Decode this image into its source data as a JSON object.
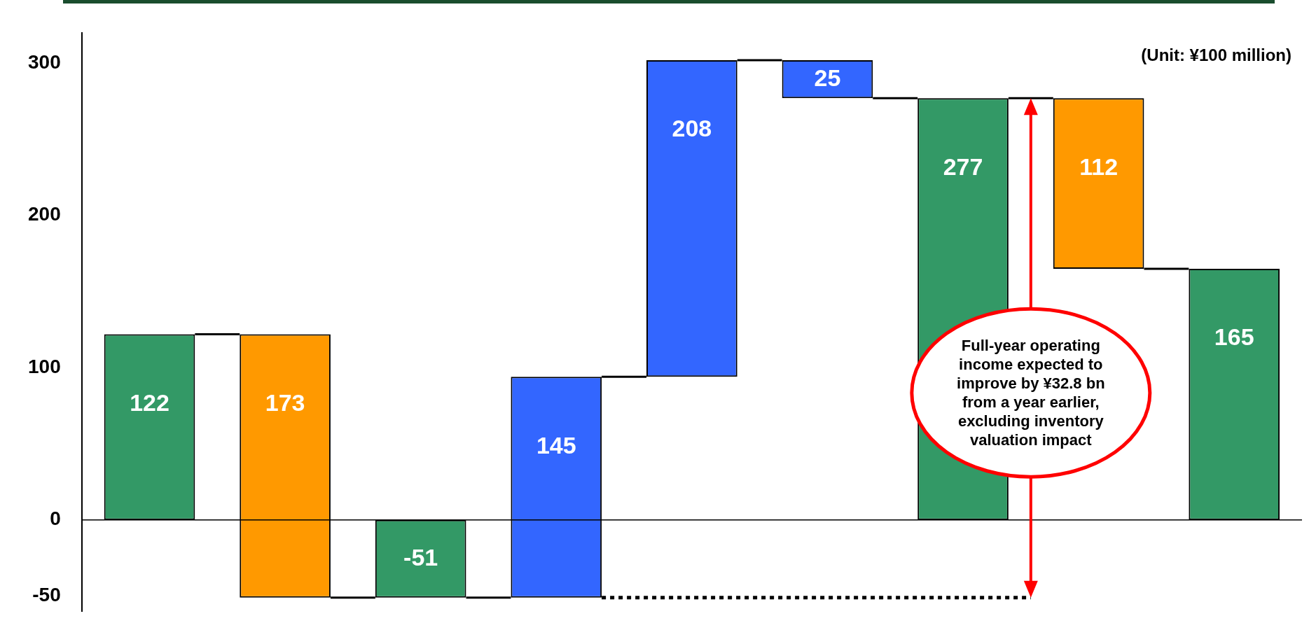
{
  "chart_data": {
    "type": "bar",
    "categories": [
      null,
      null,
      null,
      null,
      null,
      null,
      null,
      null,
      null
    ],
    "values": [
      122,
      -173,
      -51,
      145,
      208,
      -25,
      277,
      -112,
      165
    ],
    "base": [
      0,
      122,
      0,
      -51,
      94,
      302,
      0,
      277,
      0
    ],
    "colors": [
      "#339966",
      "#ff9900",
      "#339966",
      "#3366ff",
      "#3366ff",
      "#3366ff",
      "#339966",
      "#ff9900",
      "#339966"
    ],
    "value_labels": [
      "122",
      "173",
      "-51",
      "145",
      "208",
      "25",
      "277",
      "112",
      "165"
    ],
    "ylim": [
      -60,
      320
    ],
    "yticks": [
      -50,
      0,
      100,
      200,
      300
    ],
    "grid": false,
    "legend": false,
    "annotations": [
      "(Unit: ¥100 million)",
      "Full-year operating income expected to improve by ¥32.8 bn from a year earlier, excluding inventory valuation impact"
    ]
  }
}
